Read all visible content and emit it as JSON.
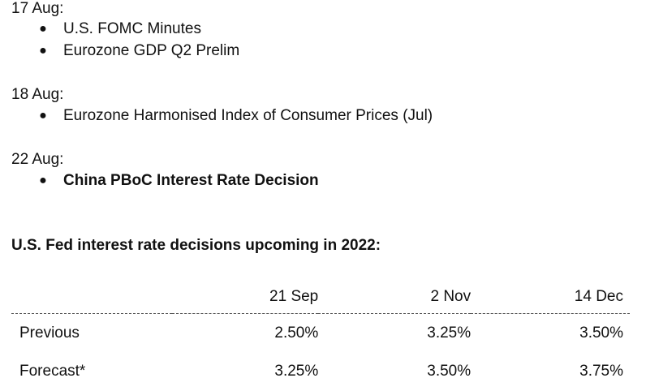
{
  "schedule": [
    {
      "date": "17 Aug:",
      "events": [
        {
          "label": "U.S. FOMC Minutes",
          "bold": false
        },
        {
          "label": "Eurozone GDP Q2 Prelim",
          "bold": false
        }
      ]
    },
    {
      "date": "18 Aug:",
      "events": [
        {
          "label": "Eurozone Harmonised Index of Consumer Prices (Jul)",
          "bold": false
        }
      ]
    },
    {
      "date": "22 Aug:",
      "events": [
        {
          "label": "China PBoC Interest Rate Decision",
          "bold": true
        }
      ]
    }
  ],
  "bullet_glyph": "●",
  "fed_section": {
    "title": "U.S. Fed interest rate decisions upcoming in 2022:",
    "columns": [
      "",
      "21 Sep",
      "2 Nov",
      "14 Dec"
    ],
    "rows": [
      {
        "label": "Previous",
        "values": [
          "2.50%",
          "3.25%",
          "3.50%"
        ]
      },
      {
        "label": "Forecast*",
        "values": [
          "3.25%",
          "3.50%",
          "3.75%"
        ]
      }
    ]
  }
}
